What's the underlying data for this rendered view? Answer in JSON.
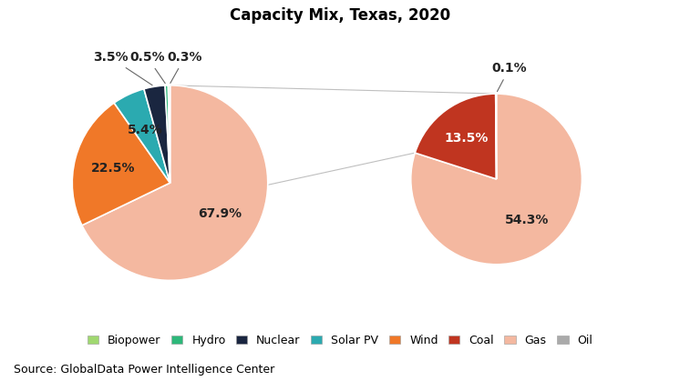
{
  "chart_data": {
    "type": "pie",
    "title": "Capacity Mix, Texas, 2020",
    "annotations": [
      "Source: GlobalData Power Intelligence Center"
    ],
    "legend": "lower center",
    "data_labels": true,
    "legend_entries": [
      {
        "name": "Biopower",
        "color": "#a0d870"
      },
      {
        "name": "Hydro",
        "color": "#2db87a"
      },
      {
        "name": "Nuclear",
        "color": "#1a2640"
      },
      {
        "name": "Solar PV",
        "color": "#2baab0"
      },
      {
        "name": "Wind",
        "color": "#f07828"
      },
      {
        "name": "Coal",
        "color": "#c03520"
      },
      {
        "name": "Gas",
        "color": "#f4b8a0"
      },
      {
        "name": "Oil",
        "color": "#aaaaaa"
      }
    ],
    "pies": [
      {
        "categories": [
          "Gas",
          "Wind",
          "Solar PV",
          "Nuclear",
          "Hydro",
          "Biopower",
          "Oil"
        ],
        "values": [
          67.9,
          22.5,
          5.4,
          3.5,
          0.5,
          0.3,
          0.0
        ],
        "colors": [
          "#f4b8a0",
          "#f07828",
          "#2baab0",
          "#1a2640",
          "#2db87a",
          "#a0d870",
          "#aaaaaa"
        ],
        "value_labels": [
          "67.9%",
          "22.5%",
          "5.4%",
          "3.5%",
          "0.5%",
          "0.3%",
          null
        ]
      },
      {
        "categories": [
          "Gas",
          "Coal",
          "Oil"
        ],
        "values": [
          54.3,
          13.5,
          0.1
        ],
        "colors": [
          "#f4b8a0",
          "#c03520",
          "#aaaaaa"
        ],
        "value_labels": [
          "54.3%",
          "13.5%",
          "0.1%"
        ]
      }
    ]
  }
}
